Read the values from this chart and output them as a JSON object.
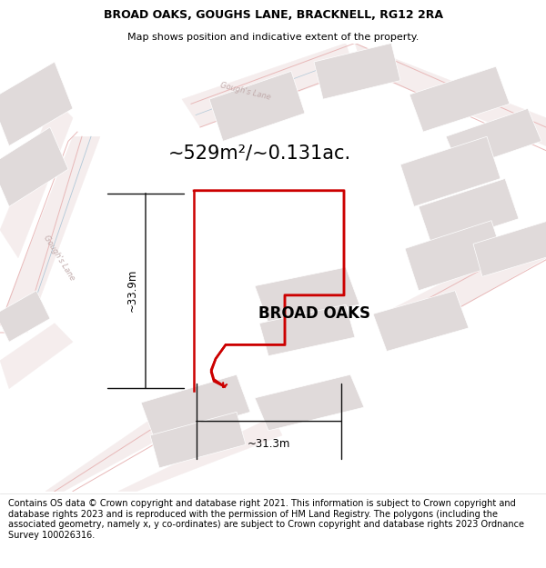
{
  "title": "BROAD OAKS, GOUGHS LANE, BRACKNELL, RG12 2RA",
  "subtitle": "Map shows position and indicative extent of the property.",
  "property_label": "BROAD OAKS",
  "area_label": "~529m²/~0.131ac.",
  "width_label": "~31.3m",
  "height_label": "~33.9m",
  "footer": "Contains OS data © Crown copyright and database right 2021. This information is subject to Crown copyright and database rights 2023 and is reproduced with the permission of HM Land Registry. The polygons (including the associated geometry, namely x, y co-ordinates) are subject to Crown copyright and database rights 2023 Ordnance Survey 100026316.",
  "map_bg": "#f8f6f6",
  "road_fill_color": "#f5eded",
  "road_outline_color": "#e8b8b8",
  "building_fill": "#e0dada",
  "building_edge": "#ffffff",
  "property_color": "#cc0000",
  "dim_color": "#111111",
  "road_label_color": "#c0aaaa",
  "title_fontsize": 9,
  "subtitle_fontsize": 8,
  "area_fontsize": 15,
  "property_label_fontsize": 12,
  "dim_fontsize": 8.5,
  "road_label_fontsize": 6,
  "footer_fontsize": 7
}
